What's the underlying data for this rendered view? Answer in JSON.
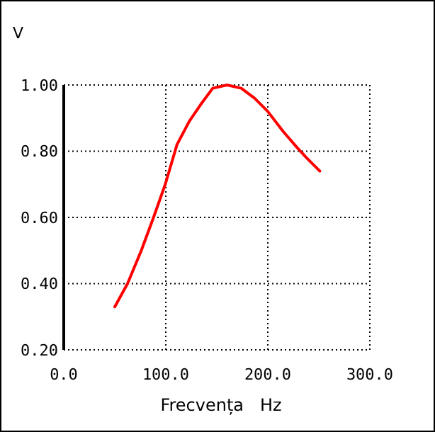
{
  "chart_data": {
    "type": "line",
    "xlabel": "Frecvența   Hz",
    "ylabel": "V",
    "x": [
      50,
      62.5,
      76,
      88,
      99.5,
      111,
      123,
      134,
      146,
      160,
      174,
      187,
      200,
      215,
      229,
      238,
      251
    ],
    "series": [
      {
        "color": "#ff0000",
        "values": [
          0.33,
          0.4,
          0.5,
          0.6,
          0.7,
          0.82,
          0.89,
          0.94,
          0.99,
          1.0,
          0.99,
          0.96,
          0.92,
          0.86,
          0.81,
          0.78,
          0.74
        ]
      }
    ],
    "xlim": [
      0,
      300
    ],
    "xticks": [
      {
        "value": 0,
        "label": "0.0"
      },
      {
        "value": 100,
        "label": "100.0"
      },
      {
        "value": 200,
        "label": "200.0"
      },
      {
        "value": 300,
        "label": "300.0"
      }
    ],
    "ylim": [
      0.2,
      1.0
    ],
    "yticks": [
      {
        "value": 0.2,
        "label": "0.20"
      },
      {
        "value": 0.4,
        "label": "0.40"
      },
      {
        "value": 0.6,
        "label": "0.60"
      },
      {
        "value": 0.8,
        "label": "0.80"
      },
      {
        "value": 1.0,
        "label": "1.00"
      }
    ],
    "grid": true,
    "marker": "none",
    "line_style": "solid"
  }
}
